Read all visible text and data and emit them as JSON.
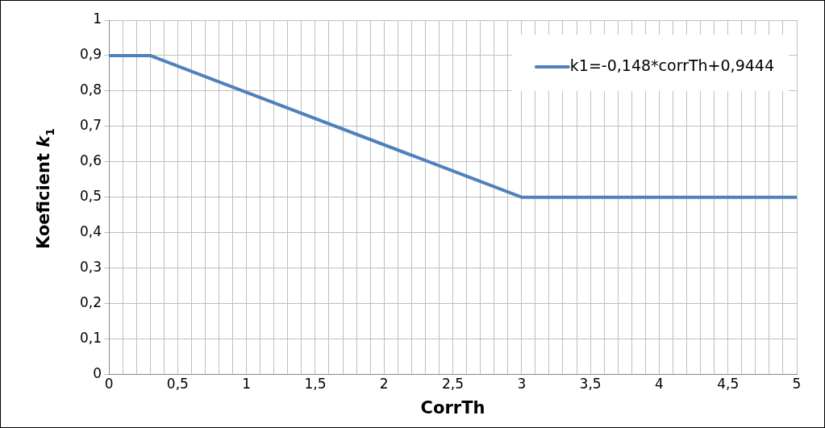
{
  "chart_data": {
    "type": "line",
    "xlabel": "CorrTh",
    "ylabel": "Koeficient k$_{1}$",
    "x": [
      0,
      0.3,
      3,
      5
    ],
    "series": [
      {
        "name": "k1=-0,148*corrTh+0,9444",
        "color": "#4f81bd",
        "values": [
          0.9,
          0.9,
          0.5,
          0.5
        ]
      }
    ],
    "xlim": [
      0,
      5
    ],
    "xticks": [
      {
        "value": 0,
        "label": "0"
      },
      {
        "value": 0.1,
        "label": null
      },
      {
        "value": 0.2,
        "label": null
      },
      {
        "value": 0.3,
        "label": null
      },
      {
        "value": 0.4,
        "label": null
      },
      {
        "value": 0.5,
        "label": "0,5"
      },
      {
        "value": 0.6,
        "label": null
      },
      {
        "value": 0.7,
        "label": null
      },
      {
        "value": 0.8,
        "label": null
      },
      {
        "value": 0.9,
        "label": null
      },
      {
        "value": 1,
        "label": "1"
      },
      {
        "value": 1.1,
        "label": null
      },
      {
        "value": 1.2,
        "label": null
      },
      {
        "value": 1.3,
        "label": null
      },
      {
        "value": 1.4,
        "label": null
      },
      {
        "value": 1.5,
        "label": "1,5"
      },
      {
        "value": 1.6,
        "label": null
      },
      {
        "value": 1.7,
        "label": null
      },
      {
        "value": 1.8,
        "label": null
      },
      {
        "value": 1.9,
        "label": null
      },
      {
        "value": 2,
        "label": "2"
      },
      {
        "value": 2.1,
        "label": null
      },
      {
        "value": 2.2,
        "label": null
      },
      {
        "value": 2.3,
        "label": null
      },
      {
        "value": 2.4,
        "label": null
      },
      {
        "value": 2.5,
        "label": "2,5"
      },
      {
        "value": 2.6,
        "label": null
      },
      {
        "value": 2.7,
        "label": null
      },
      {
        "value": 2.8,
        "label": null
      },
      {
        "value": 2.9,
        "label": null
      },
      {
        "value": 3,
        "label": "3"
      },
      {
        "value": 3.1,
        "label": null
      },
      {
        "value": 3.2,
        "label": null
      },
      {
        "value": 3.3,
        "label": null
      },
      {
        "value": 3.4,
        "label": null
      },
      {
        "value": 3.5,
        "label": "3,5"
      },
      {
        "value": 3.6,
        "label": null
      },
      {
        "value": 3.7,
        "label": null
      },
      {
        "value": 3.8,
        "label": null
      },
      {
        "value": 3.9,
        "label": null
      },
      {
        "value": 4,
        "label": "4"
      },
      {
        "value": 4.1,
        "label": null
      },
      {
        "value": 4.2,
        "label": null
      },
      {
        "value": 4.3,
        "label": null
      },
      {
        "value": 4.4,
        "label": null
      },
      {
        "value": 4.5,
        "label": "4,5"
      },
      {
        "value": 4.6,
        "label": null
      },
      {
        "value": 4.7,
        "label": null
      },
      {
        "value": 4.8,
        "label": null
      },
      {
        "value": 4.9,
        "label": null
      },
      {
        "value": 5,
        "label": "5"
      }
    ],
    "ylim": [
      0,
      1
    ],
    "yticks": [
      {
        "value": 0,
        "label": "0"
      },
      {
        "value": 0.1,
        "label": "0,1"
      },
      {
        "value": 0.2,
        "label": "0,2"
      },
      {
        "value": 0.3,
        "label": "0,3"
      },
      {
        "value": 0.4,
        "label": "0,4"
      },
      {
        "value": 0.5,
        "label": "0,5"
      },
      {
        "value": 0.6,
        "label": "0,6"
      },
      {
        "value": 0.7,
        "label": "0,7"
      },
      {
        "value": 0.8,
        "label": "0,8"
      },
      {
        "value": 0.9,
        "label": "0,9"
      },
      {
        "value": 1,
        "label": "1"
      }
    ],
    "grid": true,
    "legend": "top right",
    "marker": "none",
    "line_style": "solid"
  }
}
